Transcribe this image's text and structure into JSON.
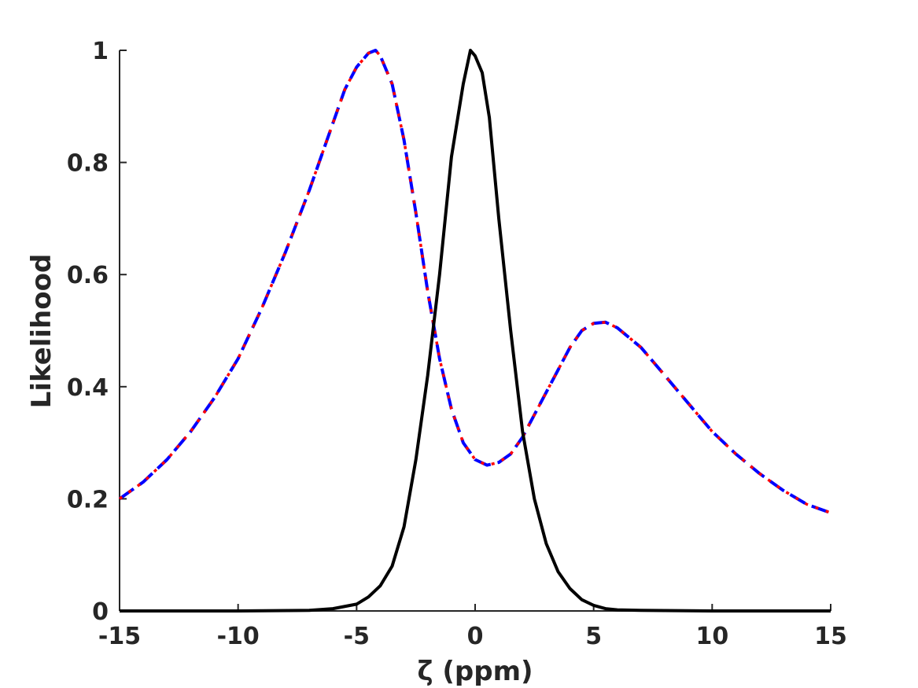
{
  "chart_data": {
    "type": "line",
    "xlabel": "ζ (ppm)",
    "ylabel": "Likelihood",
    "xlim": [
      -15,
      15
    ],
    "ylim": [
      0,
      1
    ],
    "xticks": [
      -15,
      -10,
      -5,
      0,
      5,
      10,
      15
    ],
    "xtick_labels": [
      "-15",
      "-10",
      "-5",
      "0",
      "5",
      "10",
      "15"
    ],
    "yticks": [
      0,
      0.2,
      0.4,
      0.6,
      0.8,
      1
    ],
    "ytick_labels": [
      "0",
      "0.2",
      "0.4",
      "0.6",
      "0.8",
      "1"
    ],
    "grid": false,
    "legend": "none",
    "series": [
      {
        "color": "#000000",
        "style": "solid",
        "x": [
          -15,
          -10,
          -7,
          -6,
          -5,
          -4.5,
          -4,
          -3.5,
          -3,
          -2.5,
          -2,
          -1.5,
          -1,
          -0.5,
          -0.2,
          0,
          0.3,
          0.6,
          1,
          1.5,
          2,
          2.5,
          3,
          3.5,
          4,
          4.5,
          5,
          5.5,
          6,
          7,
          10,
          15
        ],
        "y": [
          0,
          0,
          0.001,
          0.004,
          0.012,
          0.025,
          0.045,
          0.08,
          0.15,
          0.27,
          0.42,
          0.6,
          0.81,
          0.94,
          1.0,
          0.99,
          0.96,
          0.88,
          0.7,
          0.5,
          0.32,
          0.2,
          0.12,
          0.07,
          0.04,
          0.02,
          0.01,
          0.004,
          0.002,
          0.001,
          0,
          0
        ]
      },
      {
        "color": "#0000ff",
        "style": "dashed",
        "x": [
          -15,
          -14,
          -13,
          -12,
          -11,
          -10,
          -9,
          -8,
          -7,
          -6,
          -5.5,
          -5,
          -4.5,
          -4.2,
          -4,
          -3.5,
          -3,
          -2.5,
          -2,
          -1.5,
          -1,
          -0.5,
          0,
          0.5,
          1,
          1.5,
          2,
          2.5,
          3,
          3.5,
          4,
          4.5,
          5,
          5.5,
          6,
          7,
          8,
          9,
          10,
          11,
          12,
          13,
          14,
          15
        ],
        "y": [
          0.2,
          0.23,
          0.27,
          0.32,
          0.38,
          0.45,
          0.54,
          0.64,
          0.75,
          0.87,
          0.93,
          0.97,
          0.995,
          1.0,
          0.99,
          0.94,
          0.84,
          0.71,
          0.57,
          0.45,
          0.36,
          0.3,
          0.27,
          0.26,
          0.265,
          0.28,
          0.31,
          0.35,
          0.39,
          0.43,
          0.47,
          0.5,
          0.513,
          0.515,
          0.505,
          0.47,
          0.42,
          0.37,
          0.32,
          0.28,
          0.245,
          0.215,
          0.19,
          0.175
        ]
      },
      {
        "color": "#ff0000",
        "style": "dotted",
        "x": [
          -15,
          -14,
          -13,
          -12,
          -11,
          -10,
          -9,
          -8,
          -7,
          -6,
          -5.5,
          -5,
          -4.5,
          -4.2,
          -4,
          -3.5,
          -3,
          -2.5,
          -2,
          -1.5,
          -1,
          -0.5,
          0,
          0.5,
          1,
          1.5,
          2,
          2.5,
          3,
          3.5,
          4,
          4.5,
          5,
          5.5,
          6,
          7,
          8,
          9,
          10,
          11,
          12,
          13,
          14,
          15
        ],
        "y": [
          0.2,
          0.23,
          0.27,
          0.32,
          0.38,
          0.45,
          0.54,
          0.64,
          0.75,
          0.87,
          0.93,
          0.97,
          0.995,
          1.0,
          0.99,
          0.94,
          0.84,
          0.71,
          0.57,
          0.45,
          0.36,
          0.3,
          0.27,
          0.26,
          0.265,
          0.28,
          0.31,
          0.35,
          0.39,
          0.43,
          0.47,
          0.5,
          0.513,
          0.515,
          0.505,
          0.47,
          0.42,
          0.37,
          0.32,
          0.28,
          0.245,
          0.215,
          0.19,
          0.175
        ]
      }
    ]
  }
}
